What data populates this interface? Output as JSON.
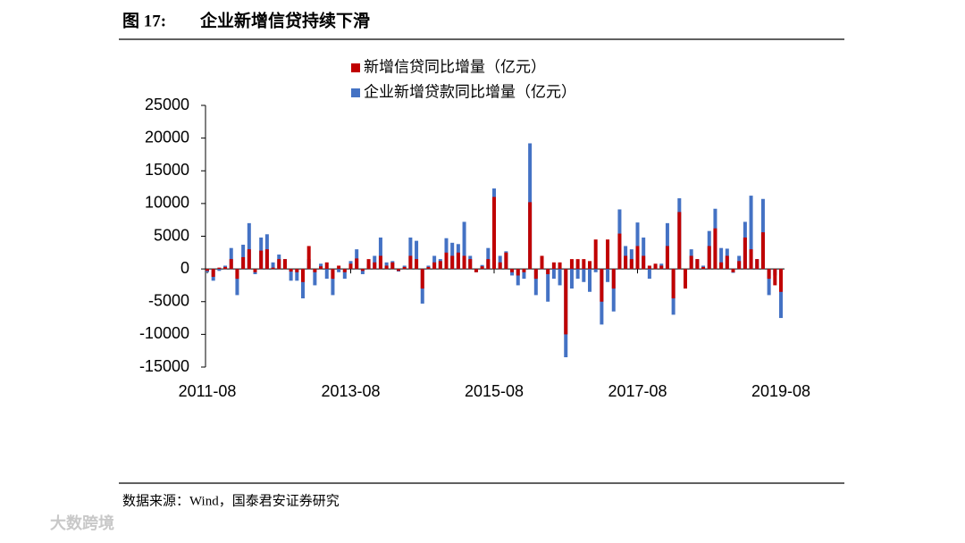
{
  "chart_data": {
    "type": "bar",
    "figure_label": "图 17:",
    "title": "企业新增信贷持续下滑",
    "categories": [
      "2011-08",
      null,
      null,
      null,
      null,
      null,
      null,
      null,
      null,
      null,
      null,
      null,
      null,
      null,
      null,
      null,
      null,
      null,
      null,
      null,
      null,
      null,
      null,
      null,
      "2013-08",
      null,
      null,
      null,
      null,
      null,
      null,
      null,
      null,
      null,
      null,
      null,
      null,
      null,
      null,
      null,
      null,
      null,
      null,
      null,
      null,
      null,
      null,
      null,
      "2015-08",
      null,
      null,
      null,
      null,
      null,
      null,
      null,
      null,
      null,
      null,
      null,
      null,
      null,
      null,
      null,
      null,
      null,
      null,
      null,
      null,
      null,
      null,
      null,
      "2017-08",
      null,
      null,
      null,
      null,
      null,
      null,
      null,
      null,
      null,
      null,
      null,
      null,
      null,
      null,
      null,
      null,
      null,
      null,
      null,
      null,
      null,
      null,
      null,
      "2019-08"
    ],
    "series": [
      {
        "name": "新增信贷同比增量（亿元）",
        "color": "#c00000",
        "values": [
          -300,
          -1200,
          200,
          300,
          1500,
          -1500,
          1800,
          3000,
          -500,
          2800,
          3000,
          200,
          1500,
          1500,
          -400,
          -500,
          -2000,
          3500,
          -500,
          400,
          1000,
          -1500,
          500,
          -500,
          800,
          1600,
          -300,
          1500,
          1000,
          2000,
          500,
          1000,
          -300,
          300,
          2000,
          1500,
          -3000,
          300,
          1000,
          1200,
          2500,
          2000,
          2500,
          2000,
          1500,
          -500,
          400,
          1500,
          11000,
          1000,
          2500,
          -500,
          -1000,
          -500,
          10200,
          -1500,
          2000,
          -800,
          1000,
          1000,
          -10000,
          1500,
          1500,
          1500,
          1200,
          4500,
          -5000,
          4500,
          -3000,
          5400,
          2000,
          1500,
          3500,
          2000,
          500,
          800,
          500,
          3500,
          -4500,
          8700,
          -3000,
          2000,
          1500,
          300,
          3500,
          6200,
          1000,
          2000,
          -500,
          1200,
          4800,
          3000,
          1500,
          5600,
          -1500,
          -2500,
          -3500
        ]
      },
      {
        "name": "企业新增贷款同比增量（亿元）",
        "color": "#4472c4",
        "values": [
          -500,
          -1800,
          -300,
          500,
          3200,
          -4000,
          3700,
          7000,
          -800,
          4800,
          5300,
          1000,
          2200,
          1500,
          -1800,
          -1800,
          -4500,
          1500,
          -2500,
          800,
          -1500,
          -4000,
          -500,
          -1500,
          1200,
          3000,
          -800,
          800,
          2000,
          4800,
          1000,
          1200,
          -400,
          500,
          4800,
          4300,
          -5300,
          500,
          2000,
          1500,
          4700,
          4000,
          3800,
          7200,
          2000,
          -500,
          600,
          3200,
          12300,
          2000,
          2700,
          -1000,
          -2500,
          -1500,
          19200,
          -4000,
          1200,
          -5000,
          -1500,
          -2500,
          -13500,
          -3000,
          -1500,
          -2000,
          -3500,
          -500,
          -8500,
          -2000,
          -6500,
          9100,
          3500,
          3000,
          7100,
          4800,
          -1500,
          500,
          800,
          7000,
          -7000,
          10800,
          -2000,
          3000,
          1500,
          500,
          5800,
          9200,
          3200,
          3100,
          -600,
          2000,
          7200,
          11200,
          1500,
          10700,
          -4000,
          -1000,
          -7500
        ]
      }
    ],
    "ylim": [
      -15000,
      25000
    ],
    "yticks": [
      -15000,
      -10000,
      -5000,
      0,
      5000,
      10000,
      15000,
      20000,
      25000
    ],
    "source": "数据来源：Wind，国泰君安证券研究",
    "watermark": "大数跨境"
  }
}
